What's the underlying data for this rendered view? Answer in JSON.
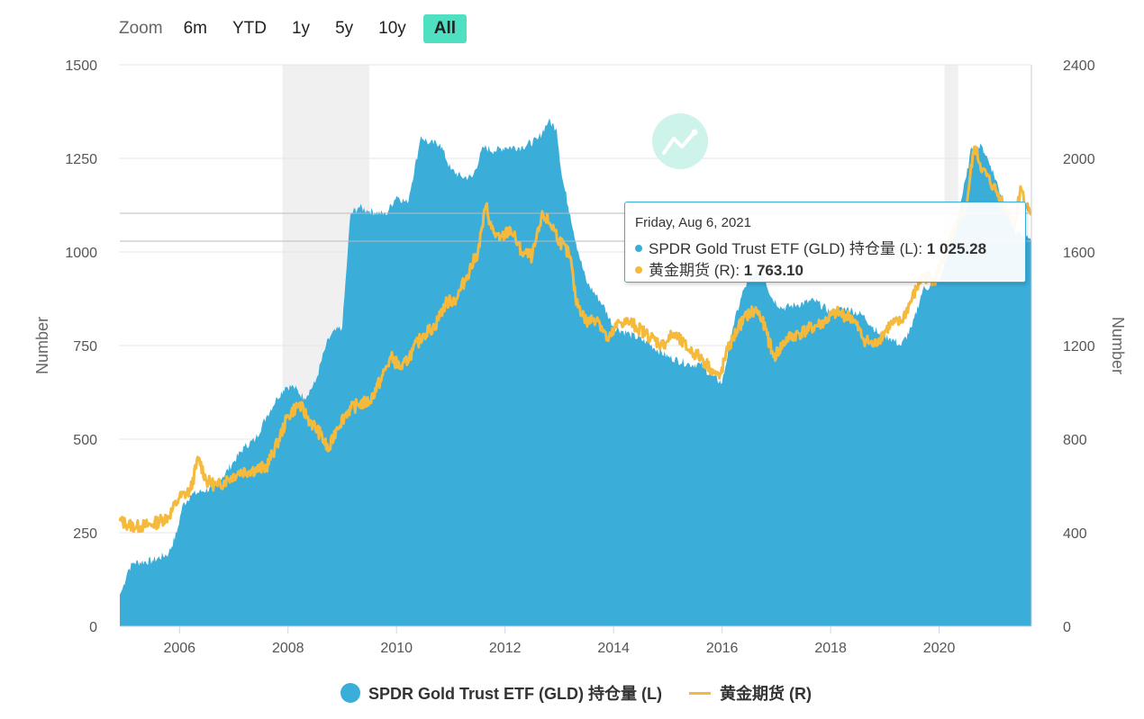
{
  "zoom": {
    "label": "Zoom",
    "buttons": [
      "6m",
      "YTD",
      "1y",
      "5y",
      "10y",
      "All"
    ],
    "active": "All"
  },
  "colors": {
    "holdings": "#3aadd9",
    "futures": "#f5b93c",
    "active_button": "#4fe0c2",
    "grid": "#e6e6e6",
    "shade": "#f0f0f0"
  },
  "icons": {
    "watermark": "chart-logo-icon"
  },
  "tooltip": {
    "date": "Friday, Aug 6, 2021",
    "series1_label": "SPDR Gold Trust ETF (GLD) 持仓量 (L): ",
    "series1_value": "1 025.28",
    "series2_label": "黄金期货 (R): ",
    "series2_value": "1 763.10"
  },
  "legend": {
    "series1": "SPDR Gold Trust ETF (GLD) 持仓量 (L)",
    "series2": "黄金期货 (R)"
  },
  "chart_data": {
    "type": "area",
    "x_range": [
      2004.9,
      2021.7
    ],
    "x_ticks": [
      "2006",
      "2008",
      "2010",
      "2012",
      "2014",
      "2016",
      "2018",
      "2020"
    ],
    "x_tick_values": [
      2006,
      2008,
      2010,
      2012,
      2014,
      2016,
      2018,
      2020
    ],
    "y_left": {
      "label": "Number",
      "range": [
        0,
        1500
      ],
      "ticks": [
        "0",
        "250",
        "500",
        "750",
        "1000",
        "1250",
        "1500"
      ],
      "tick_values": [
        0,
        250,
        500,
        750,
        1000,
        1250,
        1500
      ]
    },
    "y_right": {
      "label": "Number",
      "range": [
        0,
        2400
      ],
      "ticks": [
        "0",
        "400",
        "800",
        "1200",
        "1600",
        "2000",
        "2400"
      ],
      "tick_values": [
        0,
        400,
        800,
        1200,
        1600,
        2000,
        2400
      ]
    },
    "shaded_ranges": [
      [
        2007.9,
        2009.5
      ],
      [
        2020.1,
        2020.35
      ]
    ],
    "grid": true,
    "legend_position": "bottom",
    "series": [
      {
        "name": "SPDR Gold Trust ETF (GLD) 持仓量 (L)",
        "type": "area",
        "axis": "left",
        "x": [
          2004.9,
          2004.95,
          2005.05,
          2005.15,
          2005.5,
          2005.8,
          2005.95,
          2006.05,
          2006.2,
          2006.4,
          2006.6,
          2006.8,
          2007.0,
          2007.2,
          2007.4,
          2007.6,
          2007.8,
          2007.95,
          2008.1,
          2008.3,
          2008.5,
          2008.7,
          2008.8,
          2009.0,
          2009.1,
          2009.15,
          2009.3,
          2009.5,
          2009.8,
          2010.0,
          2010.2,
          2010.4,
          2010.45,
          2010.6,
          2010.8,
          2011.0,
          2011.2,
          2011.4,
          2011.6,
          2011.8,
          2012.0,
          2012.3,
          2012.6,
          2012.8,
          2012.95,
          2013.05,
          2013.2,
          2013.35,
          2013.5,
          2013.8,
          2014.0,
          2014.3,
          2014.6,
          2015.0,
          2015.4,
          2015.6,
          2015.8,
          2016.0,
          2016.2,
          2016.4,
          2016.6,
          2016.75,
          2016.9,
          2017.1,
          2017.4,
          2017.7,
          2018.0,
          2018.3,
          2018.6,
          2018.9,
          2019.1,
          2019.3,
          2019.5,
          2019.7,
          2020.0,
          2020.3,
          2020.5,
          2020.6,
          2020.8,
          2020.95,
          2021.2,
          2021.4,
          2021.6,
          2021.7
        ],
        "values": [
          85,
          100,
          150,
          170,
          175,
          195,
          250,
          320,
          350,
          360,
          370,
          400,
          440,
          480,
          500,
          560,
          610,
          640,
          640,
          610,
          650,
          750,
          780,
          800,
          1000,
          1100,
          1120,
          1110,
          1100,
          1150,
          1130,
          1270,
          1310,
          1290,
          1290,
          1220,
          1200,
          1200,
          1280,
          1270,
          1280,
          1280,
          1300,
          1350,
          1330,
          1200,
          1100,
          1000,
          920,
          860,
          800,
          780,
          760,
          720,
          700,
          700,
          670,
          650,
          800,
          900,
          950,
          950,
          880,
          850,
          860,
          870,
          840,
          850,
          830,
          780,
          770,
          750,
          800,
          900,
          920,
          1070,
          1200,
          1280,
          1280,
          1230,
          1130,
          1050,
          1040,
          1025
        ]
      },
      {
        "name": "黄金期货 (R)",
        "type": "line",
        "axis": "right",
        "x": [
          2004.9,
          2005.0,
          2005.2,
          2005.5,
          2005.8,
          2006.0,
          2006.2,
          2006.35,
          2006.5,
          2006.7,
          2006.9,
          2007.1,
          2007.4,
          2007.6,
          2007.8,
          2008.0,
          2008.2,
          2008.4,
          2008.6,
          2008.75,
          2008.9,
          2009.1,
          2009.3,
          2009.5,
          2009.7,
          2009.9,
          2010.1,
          2010.3,
          2010.5,
          2010.7,
          2010.9,
          2011.1,
          2011.3,
          2011.5,
          2011.65,
          2011.75,
          2011.9,
          2012.1,
          2012.3,
          2012.5,
          2012.7,
          2012.9,
          2013.0,
          2013.2,
          2013.3,
          2013.5,
          2013.7,
          2013.9,
          2014.1,
          2014.3,
          2014.6,
          2014.9,
          2015.1,
          2015.4,
          2015.6,
          2015.8,
          2015.95,
          2016.1,
          2016.3,
          2016.5,
          2016.65,
          2016.8,
          2016.95,
          2017.2,
          2017.5,
          2017.8,
          2018.1,
          2018.4,
          2018.6,
          2018.8,
          2019.1,
          2019.3,
          2019.5,
          2019.7,
          2019.9,
          2020.1,
          2020.3,
          2020.5,
          2020.65,
          2020.8,
          2021.0,
          2021.2,
          2021.4,
          2021.5,
          2021.6,
          2021.7
        ],
        "values": [
          450,
          440,
          425,
          435,
          470,
          550,
          580,
          720,
          620,
          600,
          630,
          660,
          670,
          680,
          780,
          900,
          950,
          880,
          820,
          750,
          850,
          920,
          950,
          960,
          1050,
          1150,
          1100,
          1180,
          1250,
          1280,
          1380,
          1400,
          1500,
          1600,
          1800,
          1700,
          1650,
          1700,
          1600,
          1580,
          1760,
          1700,
          1650,
          1580,
          1400,
          1300,
          1320,
          1220,
          1300,
          1300,
          1250,
          1200,
          1250,
          1180,
          1150,
          1100,
          1060,
          1180,
          1280,
          1340,
          1350,
          1270,
          1150,
          1230,
          1260,
          1290,
          1340,
          1320,
          1230,
          1200,
          1290,
          1300,
          1400,
          1500,
          1480,
          1580,
          1700,
          1800,
          2050,
          1950,
          1880,
          1800,
          1720,
          1880,
          1800,
          1763
        ]
      }
    ]
  }
}
